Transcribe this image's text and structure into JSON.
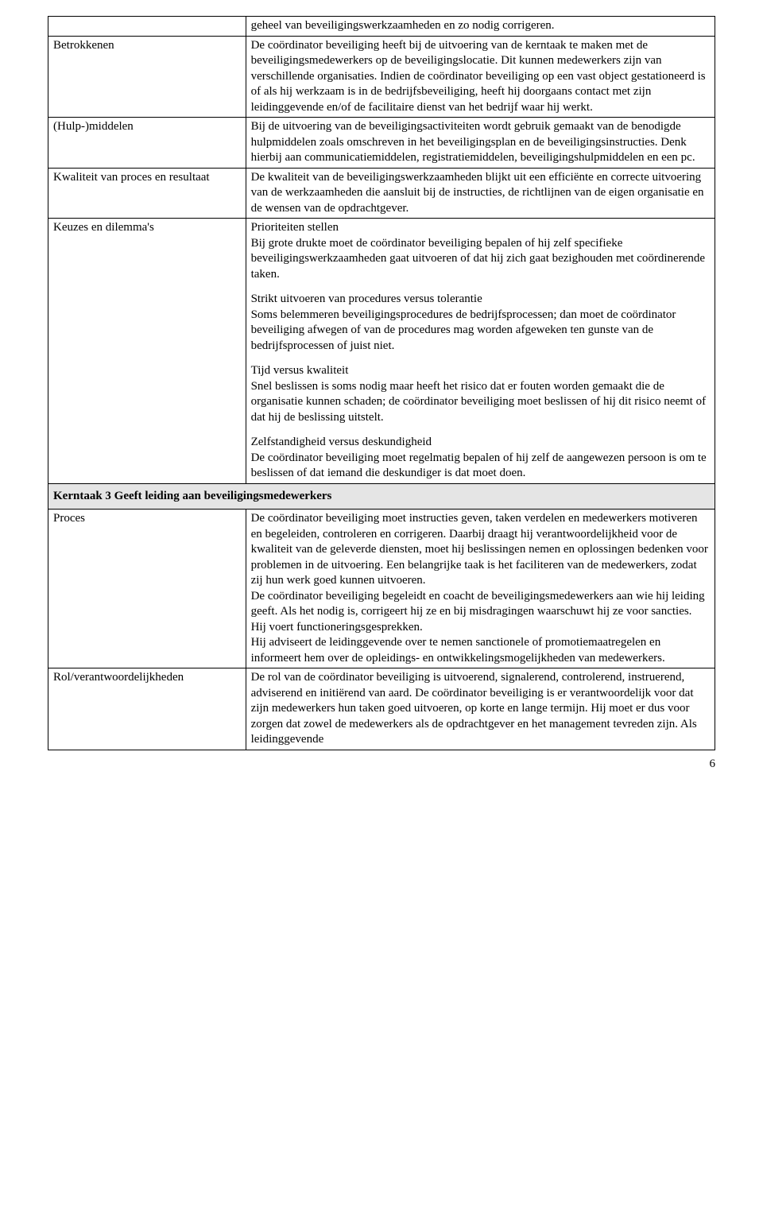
{
  "rows": {
    "r0": {
      "label": "",
      "content": "geheel van beveiligingswerkzaamheden en zo nodig corrigeren."
    },
    "r1": {
      "label": "Betrokkenen",
      "content": "De coördinator beveiliging heeft bij de uitvoering van de kerntaak te maken met de beveiligingsmedewerkers op de beveiligingslocatie. Dit kunnen medewerkers zijn van verschillende organisaties. Indien de coördinator beveiliging op een vast object gestationeerd is of als hij werkzaam is in de bedrijfsbeveiliging, heeft hij doorgaans contact met zijn leidinggevende en/of de facilitaire dienst van het bedrijf waar hij werkt."
    },
    "r2": {
      "label": "(Hulp-)middelen",
      "content": "Bij de uitvoering van de beveiligingsactiviteiten wordt gebruik gemaakt van de benodigde hulpmiddelen zoals omschreven in het beveiligingsplan en de beveiligingsinstructies. Denk hierbij aan communicatiemiddelen, registratiemiddelen, beveiligingshulpmidde­len en een pc."
    },
    "r3": {
      "label": "Kwaliteit van proces en resultaat",
      "content": "De kwaliteit van de beveiligingswerkzaamheden blijkt uit een efficiënte en correcte uitvoering van de werkzaamheden die aansluit bij de instructies, de richtlijnen van de eigen organisatie en de wensen van de opdrachtgever."
    },
    "r4": {
      "label": "Keuzes en dilemma's",
      "p1": "Prioriteiten stellen\nBij grote drukte moet de coördinator beveiliging bepalen of hij zelf specifieke beveiligingswerkzaamheden gaat uitvoeren of dat hij zich gaat bezighouden met coördinerende taken.",
      "p2": "Strikt uitvoeren van procedures versus tolerantie\nSoms belemmeren beveiligingsprocedures de bedrijfsprocessen; dan moet de coördinator beveiliging afwegen of van de procedures mag worden afgeweken ten gunste van de bedrijfsprocessen of juist niet.",
      "p3": "Tijd versus kwaliteit\nSnel beslissen is soms nodig maar heeft het risico dat er fouten worden gemaakt die de organisatie kunnen schaden; de coördinator beveiliging moet beslissen of hij dit risico neemt of dat hij de beslissing uitstelt.",
      "p4": "Zelfstandigheid versus deskundigheid\nDe coördinator beveiliging moet regelmatig bepalen of hij zelf de aangewezen persoon is om te beslissen of dat iemand die deskundiger is dat moet doen."
    },
    "section": {
      "title": "Kerntaak 3 Geeft leiding aan beveiligingsmedewerkers"
    },
    "r5": {
      "label": "Proces",
      "p1": "De coördinator beveiliging moet instructies geven, taken verdelen en medewerkers motiveren en begeleiden, controleren en corrigeren. Daarbij draagt hij verantwoordelijkheid voor de kwaliteit van de geleverde diensten, moet hij beslissingen nemen en oplossingen bedenken voor problemen in de uitvoering. Een belangrijke taak is het faciliteren van de medewerkers, zodat zij hun werk goed kunnen uitvoeren.",
      "p2": "De coördinator beveiliging begeleidt en coacht de beveiligingsmedewerkers aan wie hij leiding geeft. Als het nodig is, corrigeert hij ze en bij misdragingen waarschuwt hij ze voor sancties. Hij voert functioneringsgesprekken.",
      "p3": "Hij adviseert de leidinggevende over te nemen sanctionele of promotiemaatregelen en informeert hem over de opleidings- en ontwikkelingsmogelijkheden van medewerkers."
    },
    "r6": {
      "label": "Rol/verantwoordelijkheden",
      "content": "De rol van de coördinator beveiliging is uitvoerend, signalerend, controlerend, instruerend, adviserend en initiërend van aard. De coördinator beveiliging is er verantwoordelijk voor dat zijn medewerkers hun taken goed uitvoeren, op korte en lange termijn. Hij moet er dus voor zorgen dat zowel de medewerkers als de opdrachtgever en het management tevreden zijn. Als leidinggevende"
    }
  },
  "pageNumber": "6"
}
